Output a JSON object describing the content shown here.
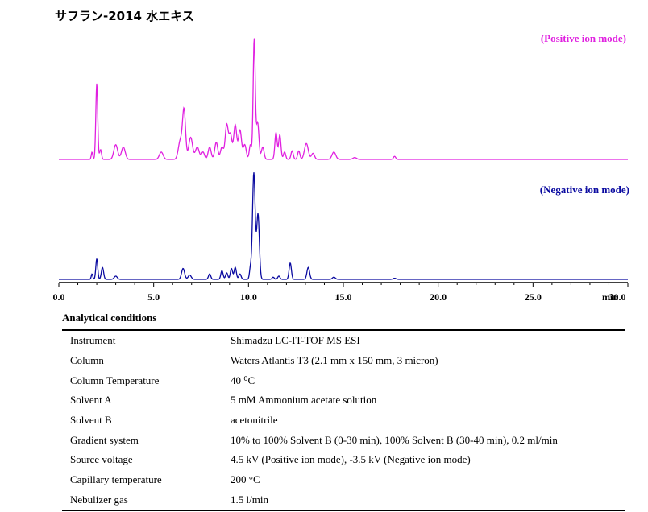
{
  "title": "サフラン-2014 水エキス",
  "chart_data": {
    "type": "line",
    "xlabel": "min",
    "xlim": [
      0,
      30
    ],
    "x_tick_labels": [
      "0.0",
      "5.0",
      "10.0",
      "15.0",
      "20.0",
      "25.0",
      "30.0"
    ],
    "x_ticks": [
      0,
      5,
      10,
      15,
      20,
      25,
      30
    ],
    "grid": false,
    "series": [
      {
        "name": "(Positive ion mode)",
        "color": "#e020e0",
        "baseline": 0.02,
        "peaks": [
          [
            1.75,
            0.06,
            0.04
          ],
          [
            2.0,
            0.62,
            0.05
          ],
          [
            2.2,
            0.08,
            0.05
          ],
          [
            3.0,
            0.12,
            0.1
          ],
          [
            3.4,
            0.1,
            0.1
          ],
          [
            5.4,
            0.06,
            0.1
          ],
          [
            6.4,
            0.15,
            0.1
          ],
          [
            6.6,
            0.4,
            0.08
          ],
          [
            6.95,
            0.18,
            0.1
          ],
          [
            7.3,
            0.1,
            0.1
          ],
          [
            7.6,
            0.06,
            0.08
          ],
          [
            7.95,
            0.1,
            0.08
          ],
          [
            8.3,
            0.14,
            0.08
          ],
          [
            8.6,
            0.1,
            0.08
          ],
          [
            8.85,
            0.28,
            0.08
          ],
          [
            9.05,
            0.2,
            0.08
          ],
          [
            9.3,
            0.28,
            0.08
          ],
          [
            9.55,
            0.24,
            0.08
          ],
          [
            9.8,
            0.12,
            0.08
          ],
          [
            10.1,
            0.12,
            0.06
          ],
          [
            10.3,
            0.98,
            0.055
          ],
          [
            10.48,
            0.3,
            0.07
          ],
          [
            10.75,
            0.1,
            0.07
          ],
          [
            11.45,
            0.22,
            0.06
          ],
          [
            11.65,
            0.2,
            0.06
          ],
          [
            11.9,
            0.06,
            0.06
          ],
          [
            12.3,
            0.07,
            0.06
          ],
          [
            12.65,
            0.07,
            0.06
          ],
          [
            13.05,
            0.13,
            0.1
          ],
          [
            13.4,
            0.05,
            0.08
          ],
          [
            14.5,
            0.06,
            0.1
          ],
          [
            15.6,
            0.015,
            0.1
          ],
          [
            17.7,
            0.025,
            0.06
          ]
        ]
      },
      {
        "name": "(Negative ion mode)",
        "color": "#0a0aa0",
        "baseline": 0.01,
        "peaks": [
          [
            1.75,
            0.05,
            0.04
          ],
          [
            2.0,
            0.19,
            0.05
          ],
          [
            2.3,
            0.11,
            0.06
          ],
          [
            3.0,
            0.03,
            0.08
          ],
          [
            6.55,
            0.1,
            0.08
          ],
          [
            6.9,
            0.04,
            0.08
          ],
          [
            7.95,
            0.05,
            0.06
          ],
          [
            8.6,
            0.08,
            0.06
          ],
          [
            8.85,
            0.06,
            0.06
          ],
          [
            9.1,
            0.1,
            0.06
          ],
          [
            9.3,
            0.11,
            0.06
          ],
          [
            9.55,
            0.05,
            0.06
          ],
          [
            10.1,
            0.1,
            0.05
          ],
          [
            10.28,
            0.98,
            0.07
          ],
          [
            10.5,
            0.6,
            0.07
          ],
          [
            11.3,
            0.02,
            0.06
          ],
          [
            11.6,
            0.03,
            0.06
          ],
          [
            12.2,
            0.15,
            0.06
          ],
          [
            13.15,
            0.11,
            0.07
          ],
          [
            14.5,
            0.02,
            0.08
          ],
          [
            17.7,
            0.01,
            0.08
          ]
        ]
      }
    ]
  },
  "conditions": {
    "title": "Analytical conditions",
    "rows": [
      [
        "Instrument",
        "Shimadzu LC-IT-TOF MS ESI"
      ],
      [
        "Column",
        "Waters Atlantis T3 (2.1 mm x 150 mm, 3 micron)"
      ],
      [
        "Column Temperature",
        "40 ⁰C"
      ],
      [
        "Solvent A",
        "5 mM Ammonium acetate solution"
      ],
      [
        "Solvent B",
        "acetonitrile"
      ],
      [
        "Gradient system",
        "10% to 100% Solvent B (0-30 min), 100% Solvent B (30-40 min), 0.2 ml/min"
      ],
      [
        "Source voltage",
        "4.5 kV (Positive ion mode), -3.5 kV (Negative ion mode)"
      ],
      [
        "Capillary temperature",
        "200 °C"
      ],
      [
        "Nebulizer gas",
        "1.5 l/min"
      ]
    ]
  }
}
